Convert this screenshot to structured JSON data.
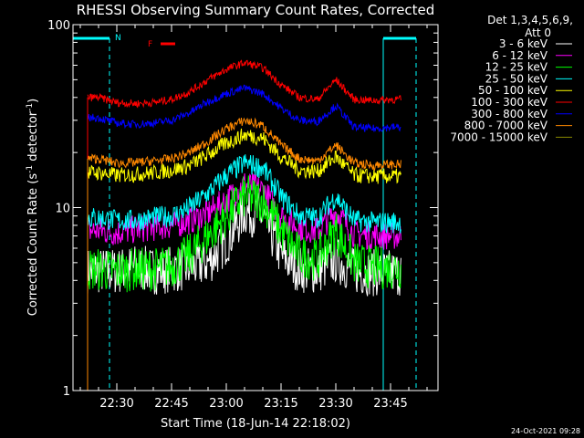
{
  "chart_data": {
    "type": "line",
    "title": "RHESSI Observing Summary Count Rates, Corrected",
    "xlabel": "Start Time (18-Jun-14 22:18:02)",
    "ylabel": "Corrected Count Rate (s⁻¹ detector⁻¹)",
    "ylabel_base": "Corrected Count Rate (s",
    "ylabel_sup1": "-1",
    "ylabel_mid": " detector",
    "ylabel_sup2": "-1",
    "ylabel_end": ")",
    "x_range": [
      "22:18",
      "23:58"
    ],
    "y_scale": "log",
    "y_range": [
      1,
      100
    ],
    "x_ticks": [
      "22:30",
      "22:45",
      "23:00",
      "23:15",
      "23:30",
      "23:45"
    ],
    "y_ticks": [
      "1",
      "10",
      "100"
    ],
    "legend_header": [
      "Det 1,3,4,5,6,9,",
      "Att 0"
    ],
    "legend_position": "right",
    "timestamp": "24-Oct-2021 09:28",
    "annotations": {
      "N": "N",
      "F": "F",
      "night_intervals": [
        [
          "22:18",
          "22:28"
        ],
        [
          "23:43",
          "23:52"
        ]
      ],
      "flare_interval": [
        "22:42",
        "22:46"
      ]
    },
    "time_grid": [
      "22:25",
      "22:30",
      "22:35",
      "22:40",
      "22:45",
      "22:50",
      "22:55",
      "23:00",
      "23:05",
      "23:10",
      "23:15",
      "23:20",
      "23:25",
      "23:30",
      "23:35",
      "23:40",
      "23:45"
    ],
    "series": [
      {
        "name": "3 - 6 keV",
        "color": "#ffffff",
        "values": [
          4.5,
          4.5,
          4.7,
          4.5,
          4.6,
          4.7,
          5.0,
          6.5,
          9.5,
          9.0,
          5.5,
          4.6,
          4.5,
          5.2,
          4.5,
          4.4,
          4.4
        ]
      },
      {
        "name": "6 - 12 keV",
        "color": "#ff00ff",
        "values": [
          7.5,
          7.3,
          7.6,
          7.8,
          8.0,
          8.5,
          9.3,
          11.0,
          13.5,
          12.5,
          9.0,
          7.8,
          7.5,
          9.5,
          7.2,
          7.0,
          7.0
        ]
      },
      {
        "name": "12 - 25 keV",
        "color": "#00ff00",
        "values": [
          4.6,
          4.5,
          4.6,
          4.6,
          4.8,
          5.5,
          7.0,
          9.0,
          11.5,
          11.0,
          7.5,
          5.5,
          5.2,
          7.5,
          5.0,
          4.7,
          4.7
        ]
      },
      {
        "name": "25 - 50 keV",
        "color": "#00ffff",
        "values": [
          8.8,
          8.5,
          8.5,
          8.8,
          9.0,
          10.0,
          12.0,
          15.0,
          17.5,
          16.5,
          11.5,
          9.0,
          8.8,
          11.5,
          8.5,
          8.3,
          8.3
        ]
      },
      {
        "name": "50 - 100 keV",
        "color": "#ffff00",
        "values": [
          15.5,
          15.0,
          15.2,
          15.5,
          16.0,
          17.0,
          19.5,
          22.5,
          25.0,
          24.0,
          19.0,
          16.0,
          15.8,
          19.0,
          15.0,
          14.8,
          14.8
        ]
      },
      {
        "name": "100 - 300 keV",
        "color": "#ff0000",
        "values": [
          40.0,
          37.5,
          37.0,
          37.5,
          39.0,
          43.0,
          50.0,
          57.0,
          62.0,
          58.0,
          47.0,
          40.0,
          39.0,
          50.0,
          39.0,
          38.5,
          39.0
        ]
      },
      {
        "name": "300 - 800 keV",
        "color": "#0000ff",
        "values": [
          31.0,
          29.0,
          28.5,
          29.0,
          30.0,
          33.0,
          38.0,
          42.0,
          45.0,
          42.0,
          35.0,
          30.0,
          29.5,
          36.0,
          27.5,
          27.0,
          27.5
        ]
      },
      {
        "name": "800 - 7000 keV",
        "color": "#ff8800",
        "values": [
          18.5,
          17.5,
          17.6,
          18.0,
          18.5,
          20.0,
          23.0,
          27.0,
          30.0,
          28.0,
          22.0,
          18.5,
          18.0,
          22.0,
          17.5,
          17.0,
          17.2
        ]
      },
      {
        "name": "7000 - 15000 keV",
        "color": "#888800",
        "values": []
      }
    ]
  }
}
